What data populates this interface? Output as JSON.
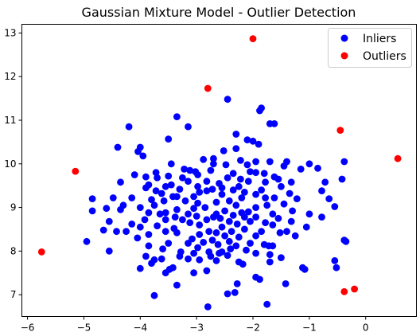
{
  "chart_data": {
    "type": "scatter",
    "title": "Gaussian Mixture Model - Outlier Detection",
    "xlabel": "",
    "ylabel": "",
    "xlim": [
      -6.1,
      0.9
    ],
    "ylim": [
      6.5,
      13.2
    ],
    "xticks": [
      -6,
      -5,
      -4,
      -3,
      -2,
      -1,
      0
    ],
    "yticks": [
      7,
      8,
      9,
      10,
      11,
      12,
      13
    ],
    "xtick_labels": [
      "−6",
      "−5",
      "−4",
      "−3",
      "−2",
      "−1",
      "0"
    ],
    "ytick_labels": [
      "7",
      "8",
      "9",
      "10",
      "11",
      "12",
      "13"
    ],
    "grid": false,
    "legend": {
      "position": "top-right"
    },
    "series": [
      {
        "name": "Inliers",
        "color": "#0000ff",
        "points": [
          [
            -2.45,
            11.48
          ],
          [
            -1.85,
            11.28
          ],
          [
            -1.88,
            11.22
          ],
          [
            -3.35,
            11.08
          ],
          [
            -1.62,
            10.92
          ],
          [
            -1.7,
            10.92
          ],
          [
            -3.15,
            10.85
          ],
          [
            -4.2,
            10.85
          ],
          [
            -2.3,
            10.68
          ],
          [
            -3.5,
            10.57
          ],
          [
            -2.1,
            10.55
          ],
          [
            -2.0,
            10.52
          ],
          [
            -1.9,
            10.45
          ],
          [
            -4.4,
            10.38
          ],
          [
            -4.0,
            10.38
          ],
          [
            -4.04,
            10.28
          ],
          [
            -2.3,
            10.35
          ],
          [
            -2.52,
            10.3
          ],
          [
            -3.95,
            10.18
          ],
          [
            -2.7,
            10.12
          ],
          [
            -2.88,
            10.1
          ],
          [
            -2.22,
            10.08
          ],
          [
            -1.7,
            10.05
          ],
          [
            -1.4,
            10.05
          ],
          [
            -0.38,
            10.05
          ],
          [
            -1.95,
            10.05
          ],
          [
            -3.45,
            10.0
          ],
          [
            -1.0,
            10.0
          ],
          [
            -2.7,
            10.0
          ],
          [
            -2.48,
            9.98
          ],
          [
            -2.1,
            9.98
          ],
          [
            -0.85,
            9.9
          ],
          [
            -1.45,
            9.95
          ],
          [
            -1.15,
            9.88
          ],
          [
            -2.75,
            9.85
          ],
          [
            -3.12,
            9.85
          ],
          [
            -3.22,
            9.88
          ],
          [
            -3.02,
            9.82
          ],
          [
            -1.95,
            9.8
          ],
          [
            -2.05,
            9.82
          ],
          [
            -1.8,
            9.78
          ],
          [
            -3.72,
            9.8
          ],
          [
            -2.35,
            9.78
          ],
          [
            -2.98,
            9.75
          ],
          [
            -4.1,
            9.75
          ],
          [
            -3.5,
            9.72
          ],
          [
            -3.9,
            9.7
          ],
          [
            -2.45,
            9.68
          ],
          [
            -3.7,
            9.68
          ],
          [
            -3.25,
            9.68
          ],
          [
            -1.62,
            9.7
          ],
          [
            -2.22,
            9.65
          ],
          [
            -0.42,
            9.65
          ],
          [
            -3.15,
            9.6
          ],
          [
            -1.55,
            9.65
          ],
          [
            -2.82,
            9.6
          ],
          [
            -4.35,
            9.58
          ],
          [
            -2.08,
            9.6
          ],
          [
            -2.6,
            9.55
          ],
          [
            -1.78,
            9.58
          ],
          [
            -1.32,
            9.58
          ],
          [
            -3.45,
            9.52
          ],
          [
            -3.85,
            9.52
          ],
          [
            -0.72,
            9.58
          ],
          [
            -2.98,
            9.48
          ],
          [
            -3.55,
            9.48
          ],
          [
            -1.5,
            9.48
          ],
          [
            -2.25,
            9.48
          ],
          [
            -2.72,
            9.42
          ],
          [
            -2.55,
            9.45
          ],
          [
            -3.3,
            9.42
          ],
          [
            -3.9,
            9.45
          ],
          [
            -2.35,
            9.4
          ],
          [
            -1.85,
            9.4
          ],
          [
            -2.82,
            9.38
          ],
          [
            -2.95,
            9.35
          ],
          [
            -3.62,
            9.32
          ],
          [
            -2.15,
            9.35
          ],
          [
            -3.72,
            9.38
          ],
          [
            -1.95,
            9.3
          ],
          [
            -3.05,
            9.25
          ],
          [
            -1.35,
            9.32
          ],
          [
            -0.78,
            9.38
          ],
          [
            -3.42,
            9.25
          ],
          [
            -2.55,
            9.3
          ],
          [
            -2.2,
            9.22
          ],
          [
            -1.62,
            9.22
          ],
          [
            -1.78,
            9.22
          ],
          [
            -4.48,
            9.22
          ],
          [
            -4.85,
            9.2
          ],
          [
            -3.35,
            9.25
          ],
          [
            -3.8,
            9.18
          ],
          [
            -4.15,
            9.22
          ],
          [
            -2.42,
            9.15
          ],
          [
            -3.2,
            9.15
          ],
          [
            -3.58,
            9.15
          ],
          [
            -2.98,
            9.1
          ],
          [
            -1.22,
            9.2
          ],
          [
            -0.65,
            9.2
          ],
          [
            -2.65,
            9.12
          ],
          [
            -3.75,
            9.05
          ],
          [
            -4.3,
            9.05
          ],
          [
            -4.0,
            9.0
          ],
          [
            -2.3,
            9.05
          ],
          [
            -1.75,
            9.05
          ],
          [
            -1.45,
            9.08
          ],
          [
            -3.05,
            8.98
          ],
          [
            -2.85,
            9.0
          ],
          [
            -1.95,
            9.0
          ],
          [
            -0.55,
            9.02
          ],
          [
            -4.6,
            8.98
          ],
          [
            -4.35,
            8.95
          ],
          [
            -3.35,
            8.95
          ],
          [
            -4.85,
            8.92
          ],
          [
            -3.55,
            8.88
          ],
          [
            -1.3,
            8.92
          ],
          [
            -2.5,
            8.92
          ],
          [
            -2.08,
            8.9
          ],
          [
            -2.2,
            8.88
          ],
          [
            -3.85,
            8.88
          ],
          [
            -3.65,
            8.85
          ],
          [
            -2.65,
            8.85
          ],
          [
            -3.15,
            8.85
          ],
          [
            -1.65,
            8.85
          ],
          [
            -1.0,
            8.85
          ],
          [
            -2.35,
            8.82
          ],
          [
            -3.0,
            8.8
          ],
          [
            -2.7,
            8.78
          ],
          [
            -2.15,
            8.78
          ],
          [
            -1.95,
            8.78
          ],
          [
            -3.38,
            8.78
          ],
          [
            -2.58,
            8.75
          ],
          [
            -3.25,
            8.72
          ],
          [
            -1.55,
            8.75
          ],
          [
            -0.78,
            8.78
          ],
          [
            -2.82,
            8.72
          ],
          [
            -3.55,
            8.72
          ],
          [
            -3.92,
            8.72
          ],
          [
            -2.42,
            8.68
          ],
          [
            -4.55,
            8.68
          ],
          [
            -2.05,
            8.68
          ],
          [
            -1.32,
            8.68
          ],
          [
            -1.78,
            8.65
          ],
          [
            -3.12,
            8.65
          ],
          [
            -2.28,
            8.62
          ],
          [
            -4.15,
            8.62
          ],
          [
            -1.65,
            8.6
          ],
          [
            -2.95,
            8.6
          ],
          [
            -3.7,
            8.58
          ],
          [
            -1.05,
            8.55
          ],
          [
            -2.55,
            8.55
          ],
          [
            -3.4,
            8.52
          ],
          [
            -4.0,
            8.55
          ],
          [
            -2.15,
            8.5
          ],
          [
            -3.55,
            8.45
          ],
          [
            -4.25,
            8.45
          ],
          [
            -4.42,
            8.45
          ],
          [
            -1.4,
            8.45
          ],
          [
            -2.78,
            8.45
          ],
          [
            -2.38,
            8.45
          ],
          [
            -1.85,
            8.45
          ],
          [
            -2.65,
            8.42
          ],
          [
            -3.35,
            8.42
          ],
          [
            -1.52,
            8.42
          ],
          [
            -4.05,
            8.3
          ],
          [
            -4.65,
            8.48
          ],
          [
            -3.85,
            8.38
          ],
          [
            -2.95,
            8.38
          ],
          [
            -2.5,
            8.35
          ],
          [
            -1.95,
            8.35
          ],
          [
            -2.25,
            8.32
          ],
          [
            -3.08,
            8.28
          ],
          [
            -1.25,
            8.35
          ],
          [
            -2.72,
            8.25
          ],
          [
            -2.42,
            8.22
          ],
          [
            -4.95,
            8.22
          ],
          [
            -2.88,
            8.2
          ],
          [
            -3.15,
            8.18
          ],
          [
            -0.38,
            8.25
          ],
          [
            -0.35,
            8.22
          ],
          [
            -2.05,
            8.18
          ],
          [
            -2.62,
            8.15
          ],
          [
            -3.5,
            8.18
          ],
          [
            -1.8,
            8.15
          ],
          [
            -1.65,
            8.12
          ],
          [
            -3.85,
            8.12
          ],
          [
            -2.3,
            8.12
          ],
          [
            -2.98,
            8.08
          ],
          [
            -1.72,
            8.12
          ],
          [
            -3.6,
            8.05
          ],
          [
            -2.4,
            8.05
          ],
          [
            -2.12,
            8.02
          ],
          [
            -4.55,
            8.0
          ],
          [
            -2.78,
            7.98
          ],
          [
            -2.6,
            7.95
          ],
          [
            -2.55,
            7.98
          ],
          [
            -3.28,
            7.98
          ],
          [
            -3.05,
            7.95
          ],
          [
            -1.95,
            7.95
          ],
          [
            -1.7,
            7.92
          ],
          [
            -2.45,
            7.9
          ],
          [
            -2.75,
            7.88
          ],
          [
            -3.3,
            7.88
          ],
          [
            -3.9,
            7.88
          ],
          [
            -1.5,
            7.85
          ],
          [
            -3.15,
            7.82
          ],
          [
            -3.62,
            7.82
          ],
          [
            -2.95,
            7.8
          ],
          [
            -2.65,
            7.78
          ],
          [
            -3.75,
            7.8
          ],
          [
            -2.25,
            7.75
          ],
          [
            -1.7,
            7.75
          ],
          [
            -3.8,
            7.72
          ],
          [
            -0.55,
            7.78
          ],
          [
            -3.42,
            7.62
          ],
          [
            -2.18,
            7.7
          ],
          [
            -3.48,
            7.58
          ],
          [
            -4.0,
            7.6
          ],
          [
            -1.12,
            7.62
          ],
          [
            -1.08,
            7.58
          ],
          [
            -0.52,
            7.62
          ],
          [
            -2.82,
            7.55
          ],
          [
            -3.05,
            7.5
          ],
          [
            -3.55,
            7.5
          ],
          [
            -1.95,
            7.4
          ],
          [
            -1.88,
            7.35
          ],
          [
            -2.28,
            7.25
          ],
          [
            -1.42,
            7.25
          ],
          [
            -3.35,
            7.22
          ],
          [
            -2.32,
            7.05
          ],
          [
            -2.45,
            7.02
          ],
          [
            -3.75,
            6.98
          ],
          [
            -1.75,
            6.78
          ],
          [
            -2.8,
            6.72
          ]
        ]
      },
      {
        "name": "Outliers",
        "color": "#ff0000",
        "points": [
          [
            -2.0,
            12.87
          ],
          [
            -2.8,
            11.73
          ],
          [
            -0.45,
            10.77
          ],
          [
            -5.15,
            9.83
          ],
          [
            0.57,
            10.12
          ],
          [
            -5.75,
            7.98
          ],
          [
            -0.2,
            7.13
          ],
          [
            -0.38,
            7.07
          ]
        ]
      }
    ]
  }
}
